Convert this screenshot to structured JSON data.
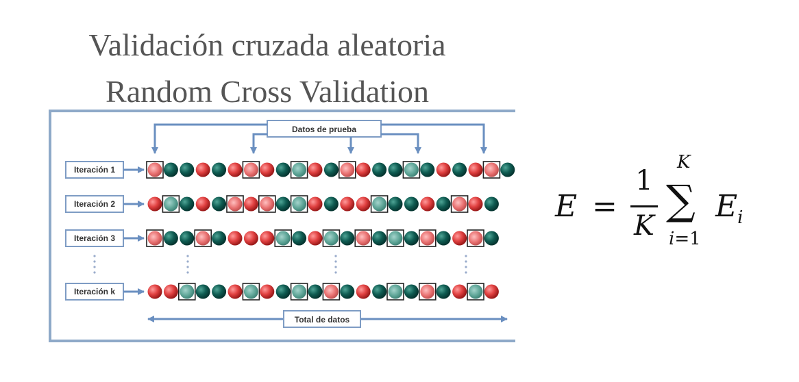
{
  "title_es": "Validación cruzada aleatoria",
  "title_en": "Random Cross Validation",
  "diagram": {
    "test_data_label": "Datos de prueba",
    "total_label": "Total de datos",
    "iterations": [
      {
        "label": "Iteración 1",
        "balls": [
          "rb",
          "g",
          "g",
          "r",
          "g",
          "r",
          "rb",
          "r",
          "g",
          "gb",
          "r",
          "g",
          "rb",
          "r",
          "g",
          "g",
          "gb",
          "g",
          "r",
          "g",
          "r",
          "rb",
          "g"
        ]
      },
      {
        "label": "Iteración 2",
        "balls": [
          "r",
          "gb",
          "g",
          "r",
          "g",
          "rb",
          "r",
          "rb",
          "g",
          "gb",
          "r",
          "g",
          "r",
          "r",
          "gb",
          "g",
          "g",
          "r",
          "g",
          "rb",
          "r",
          "g"
        ]
      },
      {
        "label": "Iteración 3",
        "balls": [
          "rb",
          "g",
          "g",
          "rb",
          "g",
          "r",
          "r",
          "r",
          "gb",
          "g",
          "r",
          "gb",
          "g",
          "rb",
          "g",
          "gb",
          "g",
          "rb",
          "g",
          "r",
          "rb",
          "g"
        ]
      },
      {
        "label": "Iteración k",
        "balls": [
          "r",
          "r",
          "gb",
          "g",
          "g",
          "r",
          "gb",
          "r",
          "g",
          "gb",
          "g",
          "rb",
          "g",
          "r",
          "g",
          "gb",
          "g",
          "rb",
          "g",
          "r",
          "gb",
          "r"
        ]
      }
    ],
    "colors": {
      "red": "#e04040",
      "green": "#0f5c52",
      "frame": "#8ea9c8",
      "arrow": "#6a8fc0"
    }
  },
  "formula": {
    "lhs": "E",
    "equals": "=",
    "numerator": "1",
    "denominator": "K",
    "sum_symbol": "∑",
    "upper_limit": "K",
    "lower_index": "i",
    "lower_eq": "=1",
    "term": "E",
    "term_sub": "i"
  }
}
